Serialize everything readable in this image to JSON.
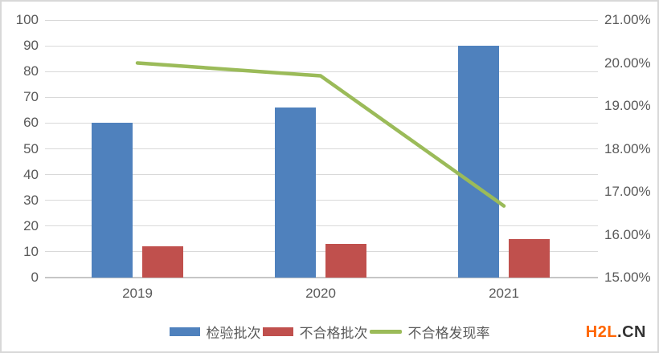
{
  "chart_data": {
    "type": "combo-bar-line",
    "title": "",
    "categories": [
      "2019",
      "2020",
      "2021"
    ],
    "series": [
      {
        "name": "检验批次",
        "type": "bar",
        "axis": "left",
        "values": [
          60,
          66,
          90
        ],
        "color": "#4F81BD"
      },
      {
        "name": "不合格批次",
        "type": "bar",
        "axis": "left",
        "values": [
          12,
          13,
          15
        ],
        "color": "#C0504D"
      },
      {
        "name": "不合格发现率",
        "type": "line",
        "axis": "right",
        "values_percent": [
          20.0,
          19.7,
          16.67
        ],
        "color": "#9BBB59"
      }
    ],
    "left_axis": {
      "ylim": [
        0,
        100
      ],
      "step": 10,
      "ticks": [
        "100",
        "90",
        "80",
        "70",
        "60",
        "50",
        "40",
        "30",
        "20",
        "10",
        "0"
      ]
    },
    "right_axis": {
      "ylim": [
        15,
        21
      ],
      "step": 1,
      "ticks": [
        "21.00%",
        "20.00%",
        "19.00%",
        "18.00%",
        "17.00%",
        "16.00%",
        "15.00%"
      ]
    },
    "grid": true,
    "legend_position": "bottom",
    "colors": {
      "grid": "#D9D9D9",
      "axis_line": "#C6C6C6",
      "tick_text": "#595959"
    }
  },
  "watermark": {
    "primary": "H2L",
    "secondary": ".CN",
    "primary_color": "#FF6600",
    "secondary_color": "#333333"
  }
}
